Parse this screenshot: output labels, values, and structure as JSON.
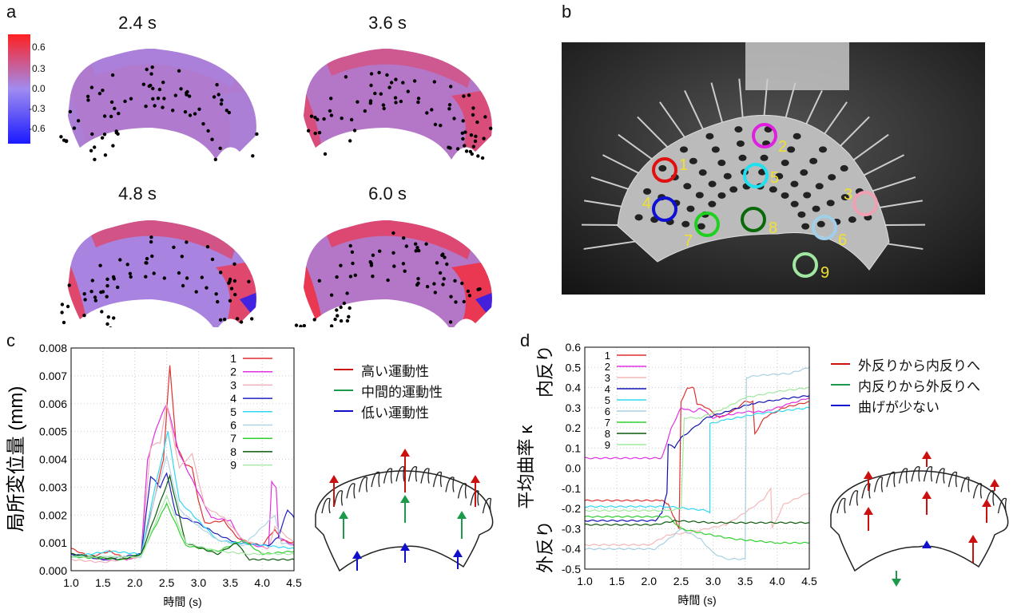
{
  "panels": {
    "a": "a",
    "b": "b",
    "c": "c",
    "d": "d"
  },
  "heatmaps": {
    "titles": [
      "2.4 s",
      "3.6 s",
      "4.8 s",
      "6.0 s"
    ],
    "colorbar": {
      "ticks": [
        "0.6",
        "0.3",
        "0.0",
        "-0.3",
        "-0.6"
      ],
      "min": -0.6,
      "max": 0.6,
      "colors": [
        "#1a1aff",
        "#a08cf0",
        "#ff2020"
      ]
    }
  },
  "photo": {
    "markers": [
      {
        "label": "1",
        "color": "#e01010"
      },
      {
        "label": "2",
        "color": "#e020e0"
      },
      {
        "label": "3",
        "color": "#f0a0b0"
      },
      {
        "label": "4",
        "color": "#1010d0"
      },
      {
        "label": "5",
        "color": "#20e0f0"
      },
      {
        "label": "6",
        "color": "#a0d0e8"
      },
      {
        "label": "7",
        "color": "#20d020"
      },
      {
        "label": "8",
        "color": "#0a6a0a"
      },
      {
        "label": "9",
        "color": "#a0e8a0"
      }
    ],
    "label_color": "#f0e030"
  },
  "motility_legend": [
    {
      "label": "高い運動性",
      "color": "#cc1010"
    },
    {
      "label": "中間的運動性",
      "color": "#1a9a4a"
    },
    {
      "label": "低い運動性",
      "color": "#1010cc"
    }
  ],
  "curvature_legend": [
    {
      "label": "外反りから内反りへ",
      "color": "#cc1010"
    },
    {
      "label": "内反りから外反りへ",
      "color": "#1a9a4a"
    },
    {
      "label": "曲げが少ない",
      "color": "#1010cc"
    }
  ],
  "chart_data": [
    {
      "type": "line",
      "xlabel": "時間 (s)",
      "ylabel": "局所変位量 (mm)",
      "xlim": [
        1.0,
        4.5
      ],
      "ylim": [
        0,
        0.008
      ],
      "grid": true,
      "legend": "top-right",
      "xticks": [
        "1.0",
        "1.5",
        "2.0",
        "2.5",
        "3.0",
        "3.5",
        "4.0",
        "4.5"
      ],
      "yticks": [
        "0.000",
        "0.001",
        "0.002",
        "0.003",
        "0.004",
        "0.005",
        "0.006",
        "0.007",
        "0.008"
      ],
      "series": [
        {
          "name": "1",
          "color": "#e03030",
          "points": [
            [
              1.0,
              0.0008
            ],
            [
              1.3,
              0.0005
            ],
            [
              1.6,
              0.0007
            ],
            [
              1.9,
              0.0004
            ],
            [
              2.1,
              0.0006
            ],
            [
              2.3,
              0.0025
            ],
            [
              2.45,
              0.004
            ],
            [
              2.55,
              0.0074
            ],
            [
              2.65,
              0.0045
            ],
            [
              2.8,
              0.0038
            ],
            [
              2.9,
              0.0037
            ],
            [
              3.0,
              0.0025
            ],
            [
              3.1,
              0.0017
            ],
            [
              3.4,
              0.0018
            ],
            [
              3.6,
              0.0012
            ],
            [
              3.8,
              0.001
            ],
            [
              4.0,
              0.0009
            ],
            [
              4.2,
              0.0015
            ],
            [
              4.3,
              0.0011
            ],
            [
              4.5,
              0.001
            ]
          ]
        },
        {
          "name": "2",
          "color": "#e030e0",
          "points": [
            [
              1.0,
              0.0006
            ],
            [
              1.5,
              0.0004
            ],
            [
              1.9,
              0.0004
            ],
            [
              2.1,
              0.0006
            ],
            [
              2.2,
              0.004
            ],
            [
              2.35,
              0.0052
            ],
            [
              2.5,
              0.006
            ],
            [
              2.7,
              0.0042
            ],
            [
              3.0,
              0.0028
            ],
            [
              3.2,
              0.0019
            ],
            [
              3.5,
              0.0018
            ],
            [
              3.7,
              0.001
            ],
            [
              4.1,
              0.0008
            ],
            [
              4.15,
              0.0032
            ],
            [
              4.22,
              0.003
            ],
            [
              4.26,
              0.0012
            ],
            [
              4.5,
              0.0009
            ]
          ]
        },
        {
          "name": "3",
          "color": "#f0b0b8",
          "points": [
            [
              1.0,
              0.0004
            ],
            [
              1.5,
              0.0003
            ],
            [
              2.1,
              0.0005
            ],
            [
              2.25,
              0.0045
            ],
            [
              2.4,
              0.0046
            ],
            [
              2.5,
              0.006
            ],
            [
              2.7,
              0.0037
            ],
            [
              2.9,
              0.0042
            ],
            [
              3.1,
              0.0023
            ],
            [
              3.4,
              0.0019
            ],
            [
              3.7,
              0.0011
            ],
            [
              4.1,
              0.0008
            ],
            [
              4.2,
              0.0016
            ],
            [
              4.5,
              0.001
            ]
          ]
        },
        {
          "name": "4",
          "color": "#2020c0",
          "points": [
            [
              1.0,
              0.0006
            ],
            [
              1.5,
              0.0004
            ],
            [
              2.1,
              0.0006
            ],
            [
              2.25,
              0.0034
            ],
            [
              2.4,
              0.003
            ],
            [
              2.5,
              0.0035
            ],
            [
              2.65,
              0.002
            ],
            [
              3.0,
              0.0017
            ],
            [
              3.3,
              0.0013
            ],
            [
              3.6,
              0.001
            ],
            [
              4.1,
              0.0009
            ],
            [
              4.25,
              0.0012
            ],
            [
              4.4,
              0.0022
            ],
            [
              4.5,
              0.0019
            ]
          ]
        },
        {
          "name": "5",
          "color": "#30d8f0",
          "points": [
            [
              1.0,
              0.0005
            ],
            [
              1.6,
              0.0007
            ],
            [
              2.1,
              0.0006
            ],
            [
              2.3,
              0.0028
            ],
            [
              2.52,
              0.005
            ],
            [
              2.7,
              0.0025
            ],
            [
              3.0,
              0.0018
            ],
            [
              3.3,
              0.0011
            ],
            [
              3.6,
              0.001
            ],
            [
              4.5,
              0.0008
            ]
          ]
        },
        {
          "name": "6",
          "color": "#b0d4e4",
          "points": [
            [
              1.0,
              0.0005
            ],
            [
              2.1,
              0.0005
            ],
            [
              2.3,
              0.0025
            ],
            [
              2.5,
              0.0041
            ],
            [
              2.7,
              0.0022
            ],
            [
              3.0,
              0.0016
            ],
            [
              3.3,
              0.0011
            ],
            [
              3.7,
              0.0009
            ],
            [
              4.2,
              0.002
            ],
            [
              4.3,
              0.001
            ],
            [
              4.5,
              0.0009
            ]
          ]
        },
        {
          "name": "7",
          "color": "#30d030",
          "points": [
            [
              1.0,
              0.0005
            ],
            [
              1.8,
              0.0004
            ],
            [
              2.1,
              0.0006
            ],
            [
              2.5,
              0.0024
            ],
            [
              2.8,
              0.0009
            ],
            [
              3.3,
              0.0007
            ],
            [
              3.7,
              0.0011
            ],
            [
              4.0,
              0.0006
            ],
            [
              4.5,
              0.0007
            ]
          ]
        },
        {
          "name": "8",
          "color": "#0a5a0a",
          "points": [
            [
              1.0,
              0.0006
            ],
            [
              1.8,
              0.0004
            ],
            [
              2.1,
              0.0006
            ],
            [
              2.55,
              0.0034
            ],
            [
              2.8,
              0.001
            ],
            [
              3.3,
              0.0006
            ],
            [
              3.6,
              0.001
            ],
            [
              3.8,
              0.0004
            ],
            [
              4.5,
              0.0004
            ]
          ]
        },
        {
          "name": "9",
          "color": "#a8e8a8",
          "points": [
            [
              1.0,
              0.0005
            ],
            [
              2.1,
              0.0005
            ],
            [
              2.5,
              0.0027
            ],
            [
              2.8,
              0.001
            ],
            [
              3.3,
              0.0007
            ],
            [
              3.8,
              0.0006
            ],
            [
              4.5,
              0.0006
            ]
          ]
        }
      ]
    },
    {
      "type": "line",
      "xlabel": "時間 (s)",
      "ylabel": "平均曲率 κ",
      "ylabel_top": "内反り",
      "ylabel_bottom": "外反り",
      "xlim": [
        1.0,
        4.5
      ],
      "ylim": [
        -0.5,
        0.6
      ],
      "grid": true,
      "legend": "top-left",
      "xticks": [
        "1.0",
        "1.5",
        "2.0",
        "2.5",
        "3.0",
        "3.5",
        "4.0",
        "4.5"
      ],
      "yticks": [
        "-0.5",
        "-0.4",
        "-0.3",
        "-0.2",
        "-0.1",
        "0.0",
        "0.1",
        "0.2",
        "0.3",
        "0.4",
        "0.5",
        "0.6"
      ],
      "series": [
        {
          "name": "1",
          "color": "#e03030",
          "points": [
            [
              1.0,
              -0.16
            ],
            [
              2.2,
              -0.16
            ],
            [
              2.3,
              -0.18
            ],
            [
              2.4,
              -0.25
            ],
            [
              2.47,
              -0.3
            ],
            [
              2.5,
              0.33
            ],
            [
              2.6,
              0.4
            ],
            [
              2.7,
              0.4
            ],
            [
              2.75,
              0.32
            ],
            [
              2.9,
              0.3
            ],
            [
              3.1,
              0.25
            ],
            [
              3.3,
              0.28
            ],
            [
              3.5,
              0.33
            ],
            [
              3.62,
              0.33
            ],
            [
              3.65,
              0.17
            ],
            [
              3.8,
              0.25
            ],
            [
              4.1,
              0.3
            ],
            [
              4.5,
              0.33
            ]
          ]
        },
        {
          "name": "2",
          "color": "#e030e0",
          "points": [
            [
              1.0,
              0.05
            ],
            [
              2.2,
              0.05
            ],
            [
              2.35,
              0.2
            ],
            [
              2.5,
              0.3
            ],
            [
              2.7,
              0.28
            ],
            [
              2.8,
              0.3
            ],
            [
              3.0,
              0.25
            ],
            [
              3.5,
              0.28
            ],
            [
              3.8,
              0.28
            ],
            [
              4.2,
              0.32
            ],
            [
              4.5,
              0.35
            ]
          ]
        },
        {
          "name": "3",
          "color": "#f4b8b8",
          "points": [
            [
              1.0,
              -0.38
            ],
            [
              2.0,
              -0.38
            ],
            [
              2.3,
              -0.33
            ],
            [
              2.6,
              -0.32
            ],
            [
              3.2,
              -0.28
            ],
            [
              3.5,
              -0.22
            ],
            [
              3.8,
              -0.15
            ],
            [
              3.9,
              -0.1
            ],
            [
              3.92,
              -0.3
            ],
            [
              4.1,
              -0.18
            ],
            [
              4.5,
              -0.12
            ]
          ]
        },
        {
          "name": "4",
          "color": "#1010b0",
          "points": [
            [
              1.0,
              -0.26
            ],
            [
              2.1,
              -0.26
            ],
            [
              2.2,
              -0.22
            ],
            [
              2.28,
              -0.12
            ],
            [
              2.3,
              0.12
            ],
            [
              2.4,
              0.1
            ],
            [
              2.5,
              0.15
            ],
            [
              2.7,
              0.2
            ],
            [
              2.9,
              0.25
            ],
            [
              3.2,
              0.28
            ],
            [
              3.6,
              0.32
            ],
            [
              4.0,
              0.34
            ],
            [
              4.5,
              0.36
            ]
          ]
        },
        {
          "name": "5",
          "color": "#30d8f0",
          "points": [
            [
              1.0,
              -0.19
            ],
            [
              2.3,
              -0.19
            ],
            [
              2.9,
              -0.21
            ],
            [
              2.95,
              -0.22
            ],
            [
              2.95,
              0.22
            ],
            [
              3.2,
              0.24
            ],
            [
              3.7,
              0.27
            ],
            [
              4.5,
              0.3
            ]
          ]
        },
        {
          "name": "6",
          "color": "#a8d0e0",
          "points": [
            [
              1.0,
              -0.4
            ],
            [
              2.1,
              -0.4
            ],
            [
              2.4,
              -0.33
            ],
            [
              2.5,
              -0.3
            ],
            [
              2.8,
              -0.35
            ],
            [
              3.0,
              -0.42
            ],
            [
              3.2,
              -0.45
            ],
            [
              3.5,
              -0.45
            ],
            [
              3.52,
              0.45
            ],
            [
              3.7,
              0.46
            ],
            [
              4.2,
              0.47
            ],
            [
              4.5,
              0.5
            ]
          ]
        },
        {
          "name": "7",
          "color": "#30d030",
          "points": [
            [
              1.0,
              -0.24
            ],
            [
              2.3,
              -0.24
            ],
            [
              2.5,
              -0.3
            ],
            [
              2.8,
              -0.32
            ],
            [
              3.3,
              -0.35
            ],
            [
              4.0,
              -0.37
            ],
            [
              4.5,
              -0.37
            ]
          ]
        },
        {
          "name": "8",
          "color": "#0a5a0a",
          "points": [
            [
              1.0,
              -0.28
            ],
            [
              2.1,
              -0.28
            ],
            [
              2.4,
              -0.26
            ],
            [
              3.0,
              -0.27
            ],
            [
              4.5,
              -0.27
            ]
          ]
        },
        {
          "name": "9",
          "color": "#a0e8a0",
          "points": [
            [
              1.0,
              -0.21
            ],
            [
              2.3,
              -0.21
            ],
            [
              2.5,
              -0.2
            ],
            [
              2.55,
              0.25
            ],
            [
              2.8,
              0.25
            ],
            [
              3.2,
              0.3
            ],
            [
              3.5,
              0.35
            ],
            [
              4.0,
              0.38
            ],
            [
              4.5,
              0.4
            ]
          ]
        }
      ]
    }
  ]
}
